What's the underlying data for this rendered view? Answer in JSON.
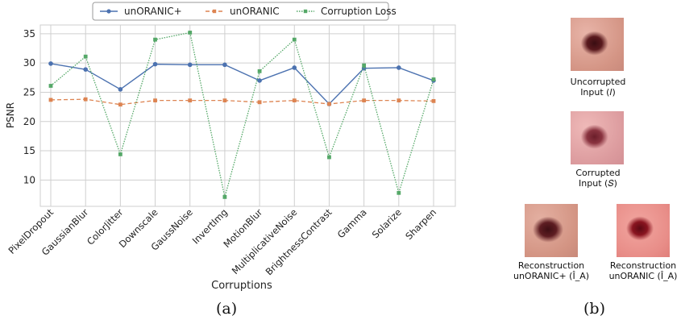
{
  "chart_data": {
    "type": "line",
    "categories": [
      "PixelDropout",
      "GaussianBlur",
      "ColorJitter",
      "Downscale",
      "GaussNoise",
      "InvertImg",
      "MotionBlur",
      "MultiplicativeNoise",
      "BrightnessContrast",
      "Gamma",
      "Solarize",
      "Sharpen"
    ],
    "series": [
      {
        "name": "unORANIC+",
        "color": "#4c72b0",
        "style": "solid",
        "marker": "circle",
        "values": [
          29.9,
          28.9,
          25.5,
          29.8,
          29.7,
          29.7,
          27.0,
          29.2,
          23.0,
          29.1,
          29.2,
          27.0
        ]
      },
      {
        "name": "unORANIC",
        "color": "#dd8452",
        "style": "dashed",
        "marker": "square",
        "values": [
          23.7,
          23.8,
          22.9,
          23.6,
          23.6,
          23.6,
          23.3,
          23.6,
          23.0,
          23.6,
          23.6,
          23.5
        ]
      },
      {
        "name": "Corruption Loss",
        "color": "#55a868",
        "style": "dotted",
        "marker": "square",
        "values": [
          26.1,
          31.1,
          14.4,
          34.0,
          35.2,
          7.1,
          28.6,
          34.0,
          13.9,
          29.6,
          7.8,
          27.2
        ]
      }
    ],
    "xlabel": "Corruptions",
    "ylabel": "PSNR",
    "ylim": [
      5.5,
      36.5
    ],
    "yticks": [
      10,
      15,
      20,
      25,
      30,
      35
    ],
    "grid": true,
    "legend": "top-center"
  },
  "panels": {
    "a_label": "(a)",
    "b_label": "(b)"
  },
  "images": {
    "uncorrupted": {
      "line1": "Uncorrupted",
      "line2": "Input (𝐼)"
    },
    "corrupted": {
      "line1": "Corrupted",
      "line2": "Input (𝑆)"
    },
    "recon_plus": {
      "line1": "Reconstruction",
      "line2": "unORANIC+ (Î_A)"
    },
    "recon": {
      "line1": "Reconstruction",
      "line2": "unORANIC (Î_A)"
    }
  }
}
